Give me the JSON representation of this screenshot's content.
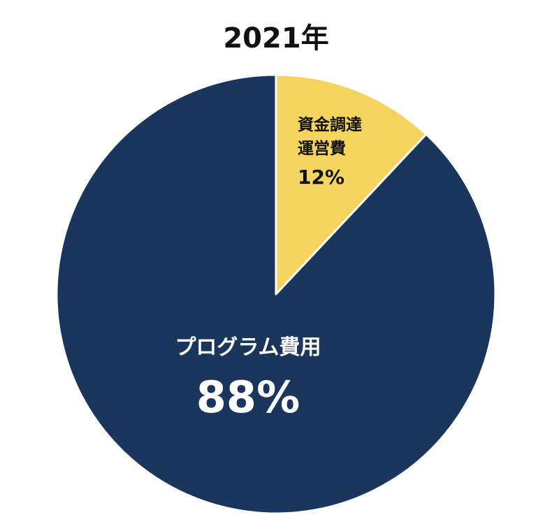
{
  "chart_data": {
    "type": "pie",
    "title": "2021年",
    "slices": [
      {
        "name_lines": [
          "資金調達",
          "運営費"
        ],
        "value": 12,
        "value_label": "12%",
        "color": "#F4D35E",
        "label_color": "#111111"
      },
      {
        "name_lines": [
          "プログラム費用"
        ],
        "value": 88,
        "value_label": "88%",
        "color": "#1B365D",
        "label_color": "#FFFFFF"
      }
    ],
    "start_angle": "12 o'clock",
    "direction": "clockwise",
    "legend": "none"
  }
}
